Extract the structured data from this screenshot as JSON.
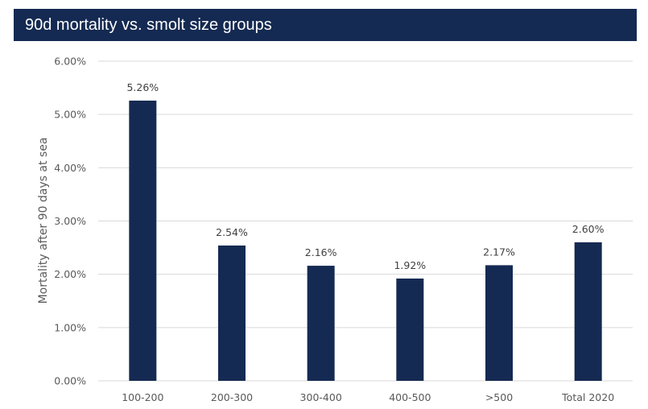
{
  "title": "90d mortality vs. smolt size groups",
  "colors": {
    "title_bg": "#152a52",
    "bar": "#152a52",
    "grid": "#d9d9d9"
  },
  "chart_data": {
    "type": "bar",
    "title": "90d mortality vs. smolt size groups",
    "xlabel": "",
    "ylabel": "Mortality after 90 days at sea",
    "categories": [
      "100-200",
      "200-300",
      "300-400",
      "400-500",
      ">500",
      "Total 2020"
    ],
    "values": [
      5.26,
      2.54,
      2.16,
      1.92,
      2.17,
      2.6
    ],
    "data_labels": [
      "5.26%",
      "2.54%",
      "2.16%",
      "1.92%",
      "2.17%",
      "2.60%"
    ],
    "ylim": [
      0,
      6
    ],
    "yticks": [
      0,
      1,
      2,
      3,
      4,
      5,
      6
    ],
    "ytick_labels": [
      "0.00%",
      "1.00%",
      "2.00%",
      "3.00%",
      "4.00%",
      "5.00%",
      "6.00%"
    ],
    "grid": true,
    "legend": "none"
  }
}
